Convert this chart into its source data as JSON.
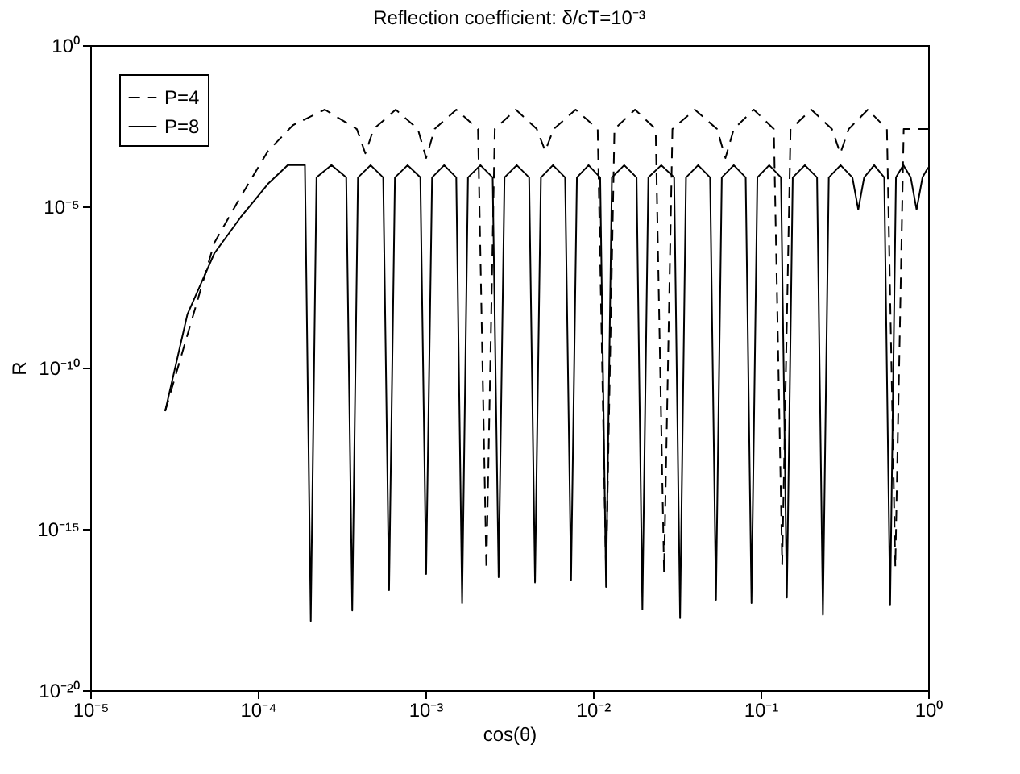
{
  "chart_data": {
    "type": "line",
    "title": "Reflection coefficient: δ/cT=10⁻³",
    "xlabel": "cos(θ)",
    "ylabel": "R",
    "log": "xy",
    "grid": false,
    "legend": "top left",
    "xlim": [
      1e-05,
      1
    ],
    "ylim": [
      1e-20,
      1
    ],
    "xticks": [
      {
        "value": 1e-05,
        "label": "10⁻⁵"
      },
      {
        "value": 0.0001,
        "label": "10⁻⁴"
      },
      {
        "value": 0.001,
        "label": "10⁻³"
      },
      {
        "value": 0.01,
        "label": "10⁻²"
      },
      {
        "value": 0.1,
        "label": "10⁻¹"
      },
      {
        "value": 1,
        "label": "10⁰"
      }
    ],
    "yticks": [
      {
        "value": 1e-20,
        "label": "10⁻²⁰"
      },
      {
        "value": 1e-15,
        "label": "10⁻¹⁵"
      },
      {
        "value": 1e-10,
        "label": "10⁻¹⁰"
      },
      {
        "value": 1e-05,
        "label": "10⁻⁵"
      },
      {
        "value": 1,
        "label": "10⁰"
      }
    ],
    "series": [
      {
        "name": "P=4",
        "color": "#000000",
        "line_style": "dashed",
        "x": [
          2.8e-05,
          5.5e-05,
          7.9e-05,
          0.000115,
          0.000162,
          0.000251,
          0.00039,
          0.000438,
          0.000491,
          0.000665,
          0.000902,
          0.00101,
          0.001135,
          0.001529,
          0.00206,
          0.002312,
          0.002594,
          0.003463,
          0.00462,
          0.00519,
          0.00582,
          0.00788,
          0.01067,
          0.01197,
          0.01343,
          0.01782,
          0.02366,
          0.02655,
          0.02979,
          0.0405,
          0.055,
          0.0617,
          0.0692,
          0.0911,
          0.12,
          0.1346,
          0.151,
          0.2007,
          0.2667,
          0.2992,
          0.3357,
          0.4365,
          0.5675,
          0.6368,
          0.7145,
          1.0
        ],
        "values": [
          4.5e-12,
          7.4e-07,
          2e-05,
          0.00052,
          0.0033,
          0.01,
          0.0025,
          0.00044,
          0.0025,
          0.01,
          0.0025,
          0.000316,
          0.0025,
          0.01,
          0.0025,
          5.5e-17,
          0.0025,
          0.01,
          0.0025,
          0.00052,
          0.0025,
          0.01,
          0.0025,
          4.57e-17,
          0.0025,
          0.01,
          0.0025,
          4.57e-17,
          0.0025,
          0.01,
          0.0025,
          0.000316,
          0.0025,
          0.01,
          0.0025,
          7.9e-17,
          0.0025,
          0.01,
          0.0025,
          0.00044,
          0.0025,
          0.01,
          0.0025,
          6.6e-17,
          0.0025,
          0.0025
        ]
      },
      {
        "name": "P=8",
        "color": "#000000",
        "line_style": "solid",
        "x": [
          2.8e-05,
          3.8e-05,
          5.5e-05,
          7.9e-05,
          0.000115,
          0.000151,
          0.000191,
          0.000207,
          0.000224,
          0.000275,
          0.000337,
          0.000366,
          0.000396,
          0.000471,
          0.00056,
          0.000607,
          0.000658,
          0.000783,
          0.000933,
          0.00101,
          0.001096,
          0.001294,
          0.001528,
          0.001656,
          0.001795,
          0.00213,
          0.00252,
          0.002735,
          0.002965,
          0.00351,
          0.00416,
          0.00451,
          0.00489,
          0.00577,
          0.00682,
          0.0074,
          0.00802,
          0.00941,
          0.01104,
          0.01197,
          0.01297,
          0.01536,
          0.0182,
          0.01972,
          0.0214,
          0.02556,
          0.0305,
          0.0331,
          0.0359,
          0.0424,
          0.05,
          0.0542,
          0.0587,
          0.0692,
          0.0815,
          0.0883,
          0.0957,
          0.1126,
          0.1324,
          0.1435,
          0.1556,
          0.1838,
          0.2173,
          0.2355,
          0.2553,
          0.3003,
          0.3532,
          0.3828,
          0.415,
          0.4764,
          0.547,
          0.593,
          0.6427,
          0.711,
          0.787,
          0.853,
          0.925,
          1.0
        ],
        "values": [
          4.5e-12,
          4.5e-09,
          3.5e-07,
          4.6e-06,
          5e-05,
          0.00019,
          0.00019,
          1.4e-18,
          7.9e-05,
          0.00019,
          7.9e-05,
          2.95e-18,
          7.9e-05,
          0.00019,
          7.9e-05,
          1.26e-17,
          7.9e-05,
          0.00019,
          7.9e-05,
          4e-17,
          7.9e-05,
          0.00019,
          7.9e-05,
          5e-18,
          7.9e-05,
          0.00019,
          7.9e-05,
          3.16e-17,
          7.9e-05,
          0.00019,
          7.9e-05,
          2.19e-17,
          7.9e-05,
          0.00019,
          7.9e-05,
          2.63e-17,
          7.9e-05,
          0.00019,
          7.9e-05,
          1.58e-17,
          7.9e-05,
          0.00019,
          7.9e-05,
          3.16e-18,
          7.9e-05,
          0.00019,
          7.9e-05,
          1.7e-18,
          7.9e-05,
          0.00019,
          7.9e-05,
          6.3e-18,
          7.9e-05,
          0.00019,
          7.9e-05,
          5e-18,
          7.9e-05,
          0.00019,
          7.9e-05,
          7.4e-18,
          7.9e-05,
          0.00019,
          7.9e-05,
          2.19e-18,
          7.9e-05,
          0.00019,
          7.9e-05,
          7.9e-06,
          7.9e-05,
          0.00019,
          7.9e-05,
          4.27e-18,
          7.9e-05,
          0.00019,
          7.9e-05,
          7.9e-06,
          7.9e-05,
          0.00016
        ]
      }
    ]
  }
}
